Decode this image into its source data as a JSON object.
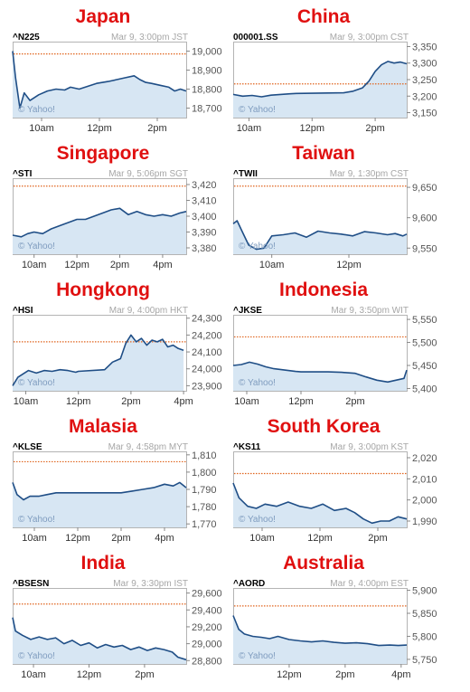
{
  "chart_data": [
    {
      "type": "area",
      "title": "Japan",
      "ticker": "^N225",
      "timestamp": "Mar 9, 3:00pm JST",
      "watermark": "© Yahoo!",
      "xlim": [
        9,
        15
      ],
      "ylim": [
        18650,
        19050
      ],
      "yticks": [
        19000,
        18900,
        18800,
        18700
      ],
      "reference_line": 18985,
      "xticks": [
        {
          "x": 10,
          "label": "10am"
        },
        {
          "x": 12,
          "label": "12pm"
        },
        {
          "x": 14,
          "label": "2pm"
        }
      ],
      "x": [
        9,
        9.1,
        9.25,
        9.4,
        9.6,
        9.9,
        10.2,
        10.5,
        10.8,
        11,
        11.3,
        11.6,
        11.9,
        12.3,
        12.6,
        12.9,
        13.2,
        13.4,
        13.6,
        13.8,
        14.1,
        14.4,
        14.6,
        14.8,
        15
      ],
      "values": [
        19000,
        18860,
        18700,
        18780,
        18740,
        18770,
        18790,
        18800,
        18795,
        18810,
        18800,
        18815,
        18830,
        18840,
        18850,
        18860,
        18870,
        18850,
        18835,
        18830,
        18820,
        18810,
        18790,
        18800,
        18790
      ]
    },
    {
      "type": "area",
      "title": "China",
      "ticker": "000001.SS",
      "timestamp": "Mar 9, 3:00pm CST",
      "watermark": "© Yahoo!",
      "xlim": [
        9.5,
        15
      ],
      "ylim": [
        3135,
        3365
      ],
      "yticks": [
        3350,
        3300,
        3250,
        3200,
        3150
      ],
      "reference_line": 3237,
      "xticks": [
        {
          "x": 10,
          "label": "10am"
        },
        {
          "x": 12,
          "label": "12pm"
        },
        {
          "x": 14,
          "label": "2pm"
        }
      ],
      "x": [
        9.5,
        9.8,
        10.1,
        10.4,
        10.7,
        11,
        11.3,
        11.5,
        13,
        13.3,
        13.6,
        13.8,
        14.0,
        14.2,
        14.4,
        14.6,
        14.8,
        15
      ],
      "values": [
        3205,
        3200,
        3202,
        3198,
        3203,
        3205,
        3207,
        3208,
        3210,
        3215,
        3225,
        3245,
        3275,
        3295,
        3305,
        3300,
        3303,
        3298
      ]
    },
    {
      "type": "area",
      "title": "Singapore",
      "ticker": "^STI",
      "timestamp": "Mar 9, 5:06pm SGT",
      "watermark": "© Yahoo!",
      "xlim": [
        9,
        17.1
      ],
      "ylim": [
        3376,
        3424
      ],
      "yticks": [
        3420,
        3410,
        3400,
        3390,
        3380
      ],
      "reference_line": 3419,
      "xticks": [
        {
          "x": 10,
          "label": "10am"
        },
        {
          "x": 12,
          "label": "12pm"
        },
        {
          "x": 14,
          "label": "2pm"
        },
        {
          "x": 16,
          "label": "4pm"
        }
      ],
      "x": [
        9,
        9.4,
        9.7,
        10,
        10.4,
        10.8,
        11.2,
        11.6,
        12,
        12.4,
        12.8,
        13.2,
        13.6,
        14,
        14.4,
        14.8,
        15.2,
        15.6,
        16,
        16.4,
        16.8,
        17.1
      ],
      "values": [
        3388,
        3387,
        3389,
        3390,
        3389,
        3392,
        3394,
        3396,
        3398,
        3398,
        3400,
        3402,
        3404,
        3405,
        3401,
        3403,
        3401,
        3400,
        3401,
        3400,
        3402,
        3403
      ]
    },
    {
      "type": "area",
      "title": "Taiwan",
      "ticker": "^TWII",
      "timestamp": "Mar 9, 1:30pm CST",
      "watermark": "© Yahoo!",
      "xlim": [
        9,
        13.5
      ],
      "ylim": [
        9540,
        9665
      ],
      "yticks": [
        9650,
        9600,
        9550
      ],
      "reference_line": 9652,
      "xticks": [
        {
          "x": 10,
          "label": "10am"
        },
        {
          "x": 12,
          "label": "12pm"
        }
      ],
      "x": [
        9,
        9.1,
        9.25,
        9.4,
        9.6,
        9.8,
        10,
        10.3,
        10.6,
        10.9,
        11.2,
        11.5,
        11.8,
        12.1,
        12.4,
        12.7,
        13,
        13.2,
        13.4,
        13.5
      ],
      "values": [
        9590,
        9595,
        9575,
        9555,
        9548,
        9550,
        9570,
        9572,
        9575,
        9568,
        9578,
        9575,
        9573,
        9570,
        9577,
        9575,
        9572,
        9574,
        9570,
        9573
      ]
    },
    {
      "type": "area",
      "title": "Hongkong",
      "ticker": "^HSI",
      "timestamp": "Mar 9, 4:00pm HKT",
      "watermark": "© Yahoo!",
      "xlim": [
        9.5,
        16.1
      ],
      "ylim": [
        23870,
        24320
      ],
      "yticks": [
        24300,
        24200,
        24100,
        24000,
        23900
      ],
      "reference_line": 24160,
      "xticks": [
        {
          "x": 10,
          "label": "10am"
        },
        {
          "x": 12,
          "label": "12pm"
        },
        {
          "x": 14,
          "label": "2pm"
        },
        {
          "x": 16,
          "label": "4pm"
        }
      ],
      "x": [
        9.5,
        9.7,
        9.9,
        10.1,
        10.4,
        10.7,
        11,
        11.3,
        11.6,
        11.9,
        12,
        13,
        13.3,
        13.6,
        13.8,
        14,
        14.2,
        14.4,
        14.6,
        14.8,
        15,
        15.2,
        15.4,
        15.6,
        15.8,
        16
      ],
      "values": [
        23900,
        23950,
        23970,
        23990,
        23975,
        23990,
        23985,
        23995,
        23990,
        23980,
        23985,
        23995,
        24040,
        24060,
        24150,
        24200,
        24160,
        24180,
        24140,
        24170,
        24160,
        24175,
        24130,
        24140,
        24120,
        24110
      ]
    },
    {
      "type": "area",
      "title": "Indonesia",
      "ticker": "^JKSE",
      "timestamp": "Mar 9, 3:50pm WIT",
      "watermark": "© Yahoo!",
      "xlim": [
        9.5,
        15.9
      ],
      "ylim": [
        5395,
        5560
      ],
      "yticks": [
        5550,
        5500,
        5450,
        5400
      ],
      "reference_line": 5512,
      "xticks": [
        {
          "x": 10,
          "label": "10am"
        },
        {
          "x": 12,
          "label": "12pm"
        },
        {
          "x": 14,
          "label": "2pm"
        }
      ],
      "x": [
        9.5,
        9.8,
        10.1,
        10.4,
        10.7,
        11,
        11.4,
        11.8,
        12,
        13,
        13.5,
        14,
        14.4,
        14.8,
        15.2,
        15.5,
        15.8,
        15.9
      ],
      "values": [
        5450,
        5452,
        5457,
        5453,
        5447,
        5443,
        5440,
        5437,
        5436,
        5436,
        5435,
        5433,
        5425,
        5418,
        5414,
        5418,
        5422,
        5440
      ]
    },
    {
      "type": "area",
      "title": "Malasia",
      "ticker": "^KLSE",
      "timestamp": "Mar 9, 4:58pm MYT",
      "watermark": "© Yahoo!",
      "xlim": [
        9,
        17
      ],
      "ylim": [
        1768,
        1812
      ],
      "yticks": [
        1810,
        1800,
        1790,
        1780,
        1770
      ],
      "reference_line": 1806,
      "xticks": [
        {
          "x": 10,
          "label": "10am"
        },
        {
          "x": 12,
          "label": "12pm"
        },
        {
          "x": 14,
          "label": "2pm"
        },
        {
          "x": 16,
          "label": "4pm"
        }
      ],
      "x": [
        9,
        9.2,
        9.5,
        9.8,
        10.2,
        10.6,
        11,
        11.5,
        12,
        13,
        14,
        14.5,
        15,
        15.5,
        16,
        16.4,
        16.7,
        17
      ],
      "values": [
        1794,
        1787,
        1784,
        1786,
        1786,
        1787,
        1788,
        1788,
        1788,
        1788,
        1788,
        1789,
        1790,
        1791,
        1793,
        1792,
        1794,
        1791
      ]
    },
    {
      "type": "area",
      "title": "South Korea",
      "ticker": "^KS11",
      "timestamp": "Mar 9, 3:00pm KST",
      "watermark": "© Yahoo!",
      "xlim": [
        9,
        15
      ],
      "ylim": [
        1987,
        2023
      ],
      "yticks": [
        2020,
        2010,
        2000,
        1990
      ],
      "reference_line": 2012.5,
      "xticks": [
        {
          "x": 10,
          "label": "10am"
        },
        {
          "x": 12,
          "label": "12pm"
        },
        {
          "x": 14,
          "label": "2pm"
        }
      ],
      "x": [
        9,
        9.2,
        9.5,
        9.8,
        10.1,
        10.5,
        10.9,
        11.3,
        11.7,
        12.1,
        12.5,
        12.9,
        13.2,
        13.5,
        13.8,
        14.1,
        14.4,
        14.7,
        15
      ],
      "values": [
        2008,
        2001,
        1997,
        1996,
        1998,
        1997,
        1999,
        1997,
        1996,
        1998,
        1995,
        1996,
        1994,
        1991,
        1989,
        1990,
        1990,
        1992,
        1991
      ]
    },
    {
      "type": "area",
      "title": "India",
      "ticker": "^BSESN",
      "timestamp": "Mar 9, 3:30pm IST",
      "watermark": "© Yahoo!",
      "xlim": [
        9.25,
        15.5
      ],
      "ylim": [
        28760,
        29660
      ],
      "yticks": [
        29600,
        29400,
        29200,
        29000,
        28800
      ],
      "reference_line": 29470,
      "xticks": [
        {
          "x": 10,
          "label": "10am"
        },
        {
          "x": 12,
          "label": "12pm"
        },
        {
          "x": 14,
          "label": "2pm"
        }
      ],
      "x": [
        9.25,
        9.35,
        9.6,
        9.9,
        10.2,
        10.5,
        10.8,
        11.1,
        11.4,
        11.7,
        12,
        12.3,
        12.6,
        12.9,
        13.2,
        13.5,
        13.8,
        14.1,
        14.4,
        14.7,
        15,
        15.2,
        15.5
      ],
      "values": [
        29310,
        29150,
        29100,
        29050,
        29080,
        29050,
        29070,
        29000,
        29040,
        28980,
        29010,
        28950,
        28990,
        28960,
        28980,
        28930,
        28960,
        28920,
        28950,
        28930,
        28900,
        28840,
        28810
      ]
    },
    {
      "type": "area",
      "title": "Australia",
      "ticker": "^AORD",
      "timestamp": "Mar 9, 4:00pm EST",
      "watermark": "© Yahoo!",
      "xlim": [
        10,
        16.2
      ],
      "ylim": [
        5740,
        5905
      ],
      "yticks": [
        5900,
        5850,
        5800,
        5750
      ],
      "reference_line": 5866,
      "xticks": [
        {
          "x": 12,
          "label": "12pm"
        },
        {
          "x": 14,
          "label": "2pm"
        },
        {
          "x": 16,
          "label": "4pm"
        }
      ],
      "x": [
        10,
        10.2,
        10.4,
        10.7,
        11,
        11.3,
        11.6,
        12,
        12.4,
        12.8,
        13.2,
        13.6,
        14,
        14.4,
        14.8,
        15.2,
        15.6,
        15.9,
        16.2
      ],
      "values": [
        5845,
        5815,
        5805,
        5800,
        5798,
        5795,
        5800,
        5793,
        5790,
        5788,
        5790,
        5787,
        5785,
        5786,
        5784,
        5780,
        5781,
        5780,
        5781
      ]
    }
  ]
}
